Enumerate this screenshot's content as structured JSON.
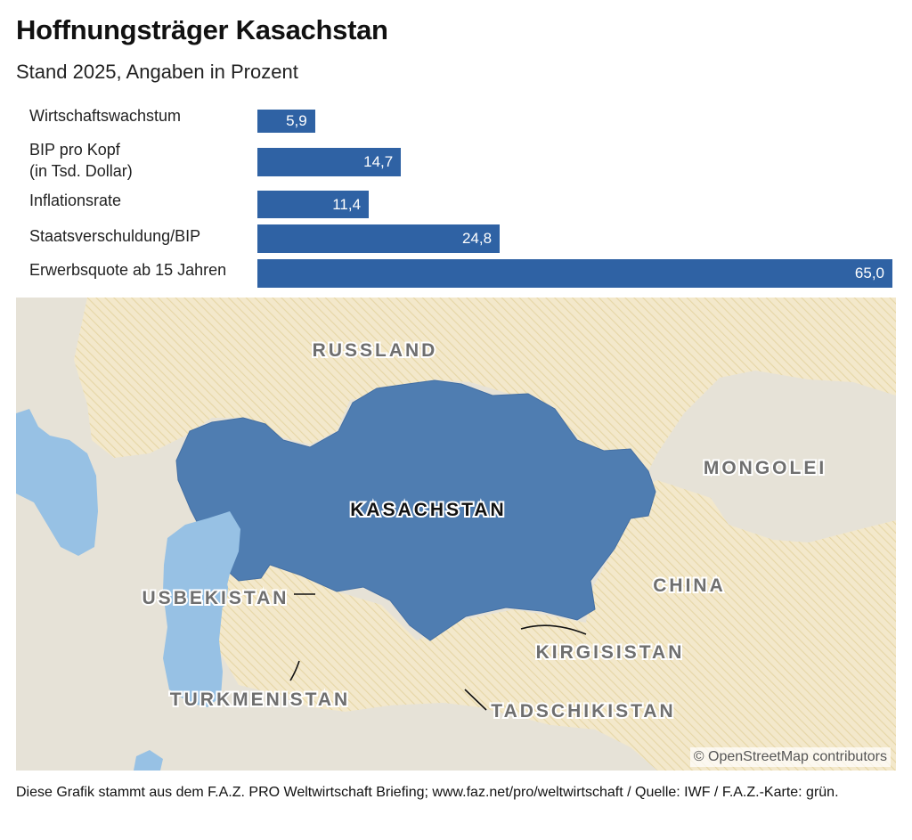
{
  "title": "Hoffnungsträger Kasachstan",
  "subtitle": "Stand 2025, Angaben in Prozent",
  "chart_data": {
    "type": "bar",
    "orientation": "horizontal",
    "title": "Hoffnungsträger Kasachstan",
    "subtitle": "Stand 2025, Angaben in Prozent",
    "categories": [
      [
        "Wirtschaftswachstum"
      ],
      [
        "BIP pro Kopf",
        "(in Tsd. Dollar)"
      ],
      [
        "Inflationsrate"
      ],
      [
        "Staatsverschuldung/BIP"
      ],
      [
        "Erwerbsquote ab 15 Jahren"
      ]
    ],
    "values": [
      5.9,
      14.7,
      11.4,
      24.8,
      65.0
    ],
    "value_labels": [
      "5,9",
      "14,7",
      "11,4",
      "24,8",
      "65,0"
    ],
    "xlim": [
      0,
      65
    ],
    "color": "#2f62a4"
  },
  "map": {
    "labels": {
      "russia": "RUSSLAND",
      "mongolia": "MONGOLEI",
      "kazakhstan": "KASACHSTAN",
      "china": "CHINA",
      "uzbekistan": "USBEKISTAN",
      "kyrgyzstan": "KIRGISISTAN",
      "turkmenistan": "TURKMENISTAN",
      "tajikistan": "TADSCHIKISTAN"
    },
    "attribution": "© OpenStreetMap contributors",
    "colors": {
      "highlight": "#4f7db1",
      "neighbor": "#f1e6c6",
      "other": "#e6e2d7",
      "water": "#97c1e4"
    }
  },
  "footer": "Diese Grafik stammt aus dem F.A.Z. PRO Weltwirtschaft Briefing; www.faz.net/pro/weltwirtschaft / Quelle: IWF / F.A.Z.-Karte: grün."
}
